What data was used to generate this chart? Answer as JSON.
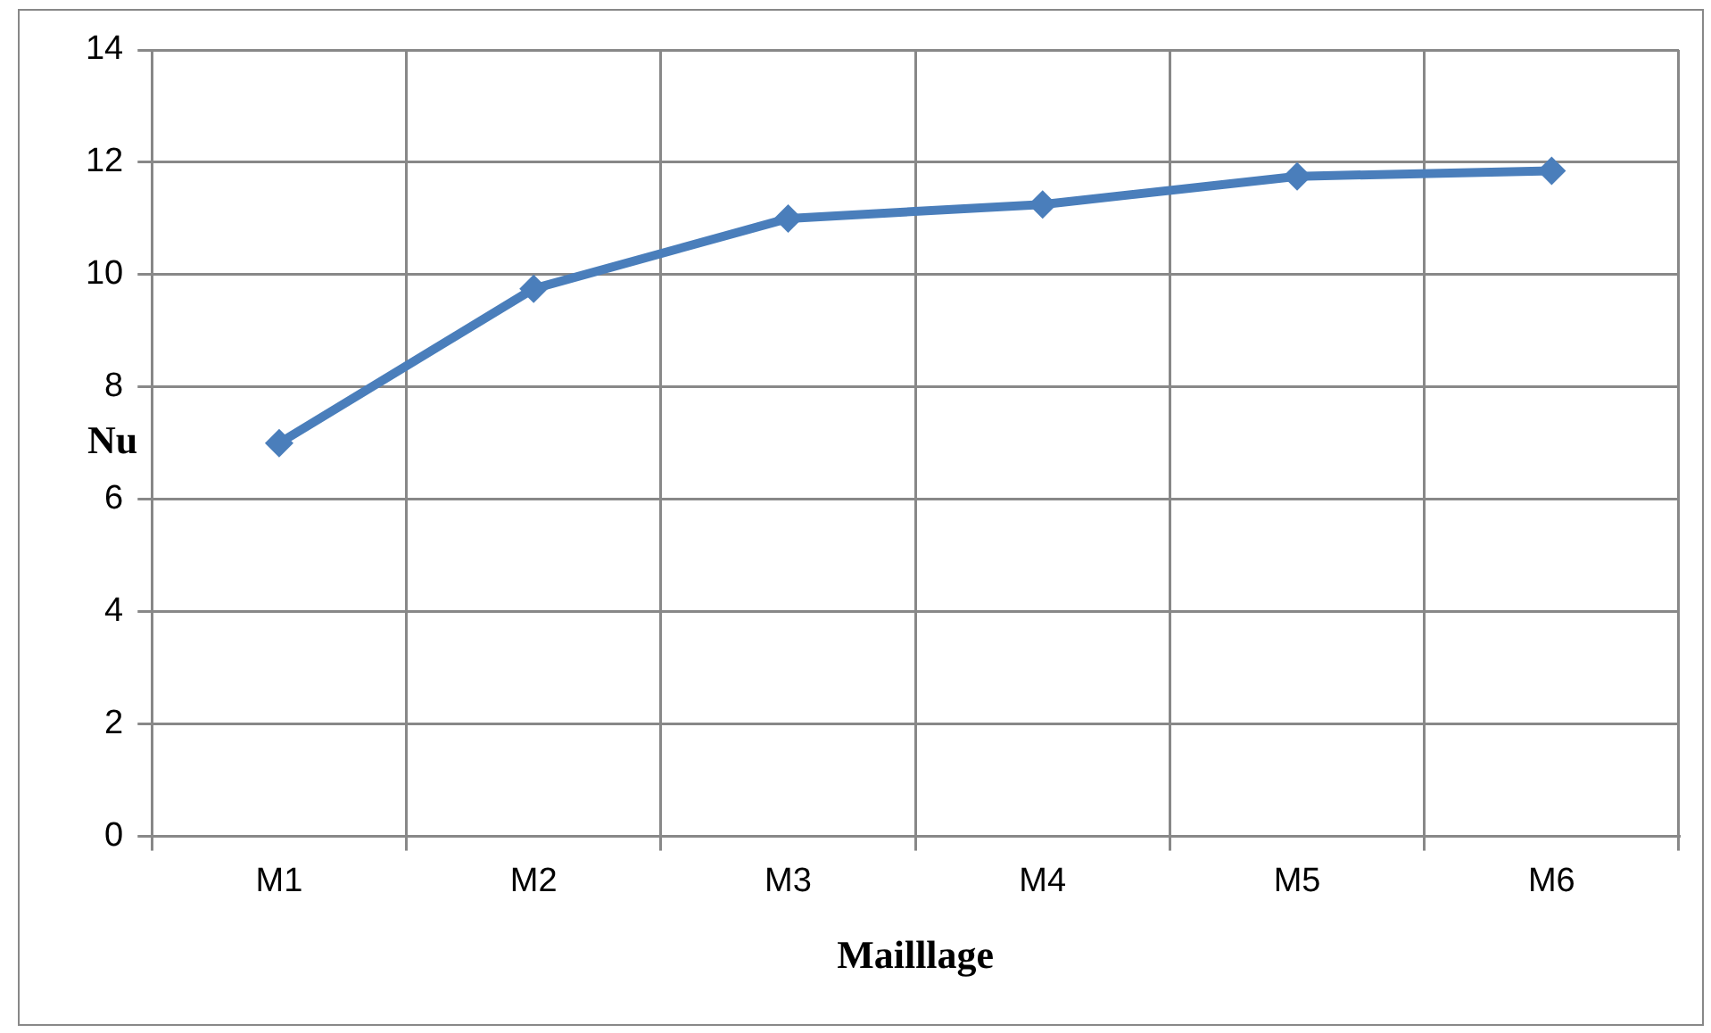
{
  "chart_data": {
    "type": "line",
    "xlabel": "Mailllage",
    "ylabel": "Nu",
    "categories": [
      "M1",
      "M2",
      "M3",
      "M4",
      "M5",
      "M6"
    ],
    "series": [
      {
        "color": "#4a7ebb",
        "values": [
          7.0,
          9.75,
          11.0,
          11.25,
          11.75,
          11.85
        ]
      }
    ],
    "ylim": [
      0,
      14
    ],
    "yticks": [
      0,
      2,
      4,
      6,
      8,
      10,
      12,
      14
    ],
    "grid": true,
    "legend": false,
    "marker": "diamond",
    "line_style": "solid"
  }
}
